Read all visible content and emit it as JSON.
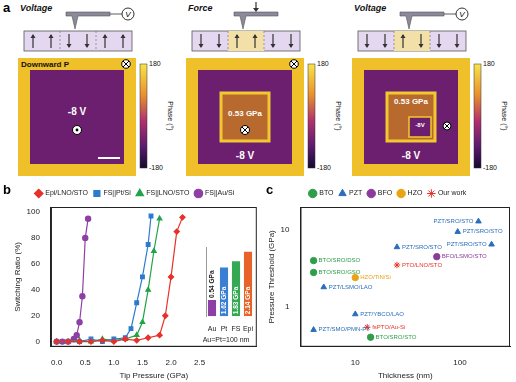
{
  "panel_labels": [
    "a",
    "b",
    "c"
  ],
  "panel_a": {
    "steps": [
      {
        "title": "Voltage",
        "meter": "V",
        "image_labels": [
          "Downward P",
          "-8 V"
        ]
      },
      {
        "title": "Force",
        "image_labels": [
          "0.53 GPa",
          "-8 V"
        ]
      },
      {
        "title": "Voltage",
        "meter": "V",
        "image_labels": [
          "0.53 GPa",
          "-8V",
          "-8 V"
        ]
      }
    ],
    "colorbar": {
      "range": [
        -180,
        180
      ],
      "ticks": [
        180,
        -180
      ],
      "label": "Phase (°)"
    }
  },
  "chart_data": [
    {
      "type": "line",
      "x_label": "Tip Pressure (GPa)",
      "y_label": "Switching Ratio (%)",
      "xlim": [
        -0.1,
        3.5
      ],
      "xticks": [
        {
          "value": 0,
          "label": "0.0"
        },
        0.5,
        {
          "value": 1,
          "label": "1.0"
        },
        1.5,
        {
          "value": 2,
          "label": "2.0"
        },
        2.5
      ],
      "ylim": [
        -4,
        104
      ],
      "yticks": [
        0,
        20,
        40,
        60,
        80,
        100
      ],
      "grid": false,
      "legend": "top",
      "series": [
        {
          "name": "Epi/LNO/STO",
          "color": "#e8312a",
          "marker": "diamond",
          "x": [
            0,
            0.2,
            0.4,
            0.6,
            0.8,
            1.0,
            1.2,
            1.4,
            1.6,
            1.8,
            1.9,
            2.0,
            2.1,
            2.2
          ],
          "values": [
            0,
            0,
            0,
            0,
            1,
            0,
            2,
            1,
            3,
            5,
            20,
            50,
            85,
            96
          ]
        },
        {
          "name": "FS||Pt/Si",
          "color": "#2a7ad0",
          "marker": "square",
          "x": [
            0,
            0.2,
            0.4,
            0.6,
            0.8,
            1.0,
            1.2,
            1.3,
            1.4,
            1.5,
            1.6,
            1.65
          ],
          "values": [
            0,
            0,
            0,
            2,
            0,
            2,
            3,
            10,
            30,
            50,
            75,
            97
          ]
        },
        {
          "name": "FS||LNO/STO",
          "color": "#22a34a",
          "marker": "triangle",
          "x": [
            0,
            0.2,
            0.4,
            0.6,
            0.8,
            1.0,
            1.2,
            1.4,
            1.5,
            1.6,
            1.7,
            1.8
          ],
          "values": [
            0,
            0,
            1,
            0,
            2,
            1,
            2,
            5,
            15,
            40,
            70,
            95
          ]
        },
        {
          "name": "FS||Au/Si",
          "color": "#8e3fa5",
          "marker": "circle",
          "x": [
            0,
            0.1,
            0.2,
            0.3,
            0.35,
            0.4,
            0.45,
            0.5,
            0.55
          ],
          "values": [
            0,
            0,
            0,
            2,
            5,
            15,
            35,
            80,
            95
          ]
        }
      ]
    },
    {
      "type": "bar",
      "categories": [
        "Au",
        "Pt",
        "FS",
        "Epi"
      ],
      "values": [
        0.54,
        1.62,
        1.83,
        2.14
      ],
      "value_labels": [
        "0.54 GPa",
        "1.62 GPa",
        "1.83 GPa",
        "2.14 GPa"
      ],
      "colors": [
        "#8e3fa5",
        "#3b7fd4",
        "#34a853",
        "#e8632a"
      ],
      "ylim": [
        0,
        2.3
      ],
      "data_labels": true,
      "tick_labels": "x",
      "grid": false,
      "annotation": "Au=Pt=100 nm"
    },
    {
      "type": "scatter",
      "x_label": "Thickness (nm)",
      "y_label": "Pressure Threshold (GPa)",
      "log": true,
      "xlim": [
        3,
        300
      ],
      "xticks": [
        10,
        100
      ],
      "ylim": [
        0.3,
        20
      ],
      "yticks": [
        1,
        10
      ],
      "grid": false,
      "legend": "top",
      "series": [
        {
          "name": "BTO",
          "color": "#2e9e4a",
          "marker": "circle",
          "x": [
            4,
            4,
            14
          ],
          "values": [
            4.0,
            2.8,
            0.4
          ],
          "labels": [
            "BTO/SRO/DSO",
            "BTO/SRO/GSO",
            "BTO/SRO/STO"
          ]
        },
        {
          "name": "PZT",
          "color": "#2a6ebb",
          "marker": "triangle",
          "x": [
            150,
            95,
            200,
            25,
            5,
            10,
            4
          ],
          "values": [
            13,
            9.5,
            6.5,
            6,
            1.8,
            0.8,
            0.5
          ],
          "labels": [
            "PZT/SRO/STO",
            "PZT/SRO/STO",
            "PZT/SRO/STO",
            "PZT/SRO/STO",
            "PZT/LSMO/LAO",
            "PZT/YBCO/LAO",
            "PZT/SMO/PMN-PT"
          ]
        },
        {
          "name": "BFO",
          "color": "#8b3a9e",
          "marker": "circle",
          "x": [
            60
          ],
          "values": [
            4.5
          ],
          "labels": [
            "BFO/LSMO/STO"
          ]
        },
        {
          "name": "HZO",
          "color": "#e8a317",
          "marker": "circle",
          "x": [
            10
          ],
          "values": [
            2.4
          ],
          "labels": [
            "HZO/TiN/Si"
          ]
        },
        {
          "name": "Our work",
          "color": "#e8312a",
          "marker": "star",
          "x": [
            25,
            13
          ],
          "values": [
            3.5,
            0.54
          ],
          "labels": [
            "PTO/LNO/STO",
            "fsPTO/Au-Si"
          ]
        }
      ]
    }
  ]
}
